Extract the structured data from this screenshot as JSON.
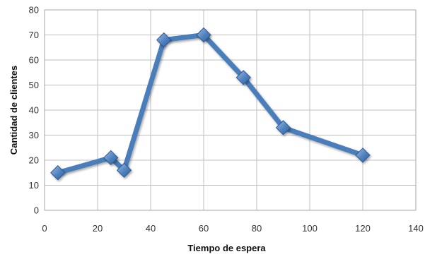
{
  "chart_data": {
    "type": "line",
    "title": "",
    "xlabel": "Tiempo de espera",
    "ylabel": "Cantidad de clientes",
    "xlim": [
      0,
      140
    ],
    "ylim": [
      0,
      80
    ],
    "xticks": [
      0,
      20,
      40,
      60,
      80,
      100,
      120,
      140
    ],
    "yticks": [
      0,
      10,
      20,
      30,
      40,
      50,
      60,
      70,
      80
    ],
    "grid": true,
    "legend": "none",
    "marker": "diamond",
    "series": [
      {
        "x": [
          5,
          25,
          30,
          45,
          60,
          75,
          90,
          120
        ],
        "y": [
          15,
          21,
          16,
          68,
          70,
          53,
          33,
          22
        ]
      }
    ]
  },
  "colors": {
    "line": "#4a7ebb",
    "marker_fill": "#4f81bd",
    "marker_stroke": "#2c5a96",
    "grid": "#bfbfbf"
  }
}
